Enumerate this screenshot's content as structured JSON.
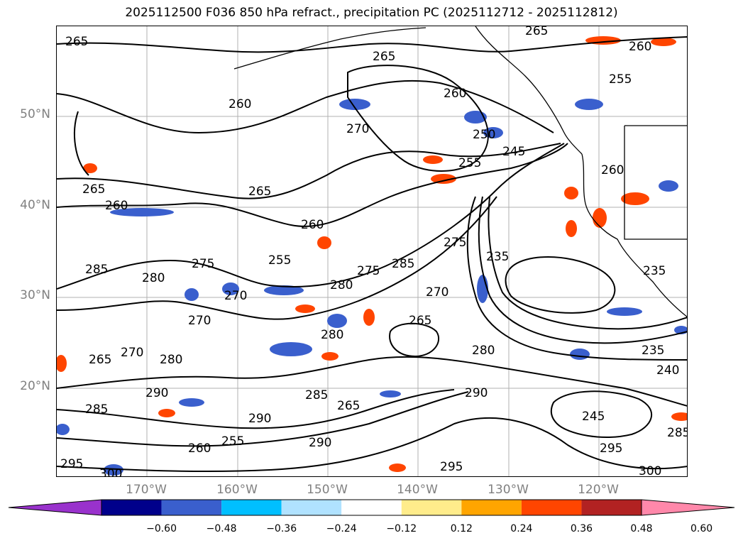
{
  "title": "2025112500 F036 850 hPa refract., precipitation PC (2025112712 - 2025112812)",
  "lat_labels": [
    "50°N",
    "40°N",
    "30°N",
    "20°N"
  ],
  "lon_labels": [
    "170°W",
    "160°W",
    "150°W",
    "140°W",
    "130°W",
    "120°W"
  ],
  "contour_labels": [
    "265",
    "265",
    "265",
    "260",
    "260",
    "260",
    "270",
    "250",
    "245",
    "255",
    "265",
    "260",
    "265",
    "260",
    "255",
    "275",
    "285",
    "275",
    "235",
    "260",
    "255",
    "270",
    "280",
    "275",
    "270",
    "265",
    "285",
    "280",
    "280",
    "265",
    "270",
    "280",
    "290",
    "285",
    "290",
    "265",
    "270",
    "280",
    "235",
    "240",
    "245",
    "290",
    "285",
    "295",
    "295",
    "300",
    "300",
    "295",
    "235",
    "285",
    "290",
    "260",
    "255"
  ],
  "colorbar": {
    "ticks": [
      "−0.60",
      "−0.48",
      "−0.36",
      "−0.24",
      "−0.12",
      "0.12",
      "0.24",
      "0.36",
      "0.48",
      "0.60"
    ],
    "colors": [
      "#9932cc",
      "#00008b",
      "#3a5fcd",
      "#00bfff",
      "#b0e2ff",
      "#ffffff",
      "#ffec8b",
      "#ffa500",
      "#ff4500",
      "#b22222",
      "#ff88aa"
    ]
  }
}
